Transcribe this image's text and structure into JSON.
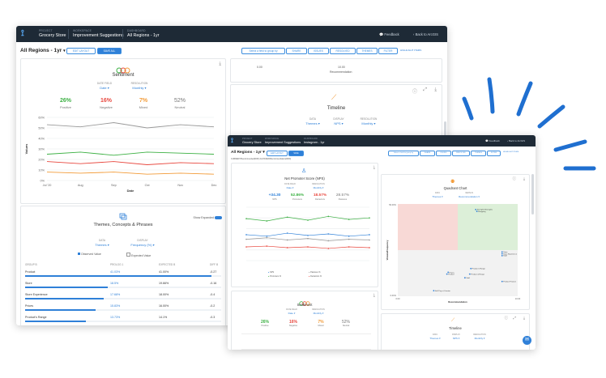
{
  "colors": {
    "navy": "#1e2a36",
    "blue": "#2f80d8",
    "green": "#3cb043",
    "red": "#e8483f",
    "orange": "#f29b38",
    "gray": "#999999",
    "swoosh": "#1f6fd0"
  },
  "back_window": {
    "breadcrumbs": [
      {
        "key": "PROJECT",
        "value": "Grocery Store"
      },
      {
        "key": "WORKSPACE",
        "value": "Improvement Suggestions"
      },
      {
        "key": "DASHBOARD",
        "value": "All Regions - 1yr"
      }
    ],
    "feedback_label": "Feedback",
    "back_label": "Back to ArcGIS",
    "region_title": "All Regions - 1yr",
    "toolbar": {
      "left_buttons": [
        "EDIT LAYOUT",
        "SAVE ALL"
      ],
      "right_buttons": [
        "Select a field to group by",
        "SHARE",
        "ISSUES",
        "RESOLVED",
        "THEMES",
        "FILTER",
        "HIGHLIGHT ITEMS"
      ]
    },
    "top_strip": {
      "values": [
        "0.00",
        "10.00",
        "Recommendation"
      ]
    },
    "sentiment": {
      "title": "Sentiment",
      "date_field_label": "DATE FIELD",
      "date_field_value": "Date",
      "resolution_label": "RESOLUTION",
      "resolution_value": "Monthly",
      "metrics": [
        {
          "value": "26%",
          "label": "Positive",
          "color": "#3cb043"
        },
        {
          "value": "16%",
          "label": "Negative",
          "color": "#e8483f"
        },
        {
          "value": "7%",
          "label": "Mixed",
          "color": "#f29b38"
        },
        {
          "value": "52%",
          "label": "Neutral",
          "color": "#777777"
        }
      ]
    },
    "chart_data": {
      "type": "line",
      "x": [
        "Jul '20",
        "Aug",
        "Sep",
        "Oct",
        "Nov",
        "Dec"
      ],
      "ylabel": "Values",
      "xlabel": "Date",
      "yticks": [
        "0%",
        "10%",
        "20%",
        "30%",
        "40%",
        "50%",
        "60%"
      ],
      "ylim": [
        0,
        60
      ],
      "series": [
        {
          "values": [
            53,
            51,
            55,
            50,
            53,
            51
          ],
          "color": "#999999"
        },
        {
          "values": [
            25,
            27,
            24,
            27,
            26,
            25
          ],
          "color": "#3cb043"
        },
        {
          "values": [
            18,
            16,
            18,
            15,
            17,
            16
          ],
          "color": "#e8483f"
        },
        {
          "values": [
            8,
            7,
            8,
            6,
            7,
            6
          ],
          "color": "#f29b38"
        }
      ]
    },
    "themes": {
      "title": "Themes, Concepts & Phrases",
      "show_expanded_label": "Show Expanded",
      "data_label": "DATA",
      "data_value": "Themes",
      "display_label": "DISPLAY",
      "display_value": "Frequency (%)",
      "legend": [
        "Observed Value",
        "Expected Value"
      ],
      "columns": [
        "GROUP B",
        "PROLOG 1",
        "EXPECTED B",
        "DIFF B"
      ],
      "rows": [
        {
          "name": "Product",
          "v1": "41.03%",
          "v2": "41.00%",
          "v3": "-0.27",
          "fill": 0.95
        },
        {
          "name": "Store",
          "v1": "18.5%",
          "v2": "19.66%",
          "v3": "-0.16",
          "fill": 0.42
        },
        {
          "name": "Store Experience",
          "v1": "17.68%",
          "v2": "18.00%",
          "v3": "-0.4",
          "fill": 0.4
        },
        {
          "name": "Prices",
          "v1": "15.83%",
          "v2": "16.00%",
          "v3": "-0.2",
          "fill": 0.36
        },
        {
          "name": "Product's Range",
          "v1": "13.73%",
          "v2": "14.1%",
          "v3": "-0.3",
          "fill": 0.31
        }
      ]
    },
    "timeline": {
      "title": "Timeline",
      "data_label": "DATA",
      "data_value": "Themes",
      "display_label": "DISPLAY",
      "display_value": "NPS",
      "resolution_label": "RESOLUTION",
      "resolution_value": "Monthly"
    }
  },
  "front_window": {
    "breadcrumbs": [
      {
        "key": "PROJECT",
        "value": "Grocery Store"
      },
      {
        "key": "WORKSPACE",
        "value": "Improvement Suggestions"
      },
      {
        "key": "DASHBOARD",
        "value": "Instagram - 1yr"
      }
    ],
    "feedback_label": "Feedback",
    "back_label": "Back to ArcGIS",
    "region_title": "All Regions - 1yr",
    "left_buttons": [
      "EDIT LAYOUT",
      "SAVE"
    ],
    "right_buttons": [
      "Select a field to group by",
      "SHARE",
      "ISSUES",
      "RESOLVED",
      "THEMES",
      "FILTER",
      "HIGHLIGHT ITEMS"
    ],
    "filter_text": "CURRENT/Recommended(DIFF) 11/15/2020/Recommendation(DIFF)",
    "nps": {
      "title": "Net Promoter Score (NPS)",
      "date_field_label": "DATE FIELD",
      "date_field_value": "Date",
      "resolution_label": "RESOLUTION",
      "resolution_value": "Monthly",
      "metrics": [
        {
          "value": "+34.30",
          "label": "NPS",
          "color": "#2f80d8"
        },
        {
          "value": "52.86%",
          "label": "Promoters",
          "color": "#3cb043"
        },
        {
          "value": "18.57%",
          "label": "Detractors",
          "color": "#e8483f"
        },
        {
          "value": "28.57%",
          "label": "Passives",
          "color": "#777777"
        }
      ],
      "legend": [
        "NPS",
        "Promoters %",
        "Passives %",
        "Detractors %"
      ]
    },
    "nps_chart": {
      "type": "line",
      "series": [
        {
          "values": [
            55,
            52,
            57,
            53,
            58,
            54,
            56
          ],
          "color": "#3cb043"
        },
        {
          "values": [
            34,
            32,
            36,
            33,
            35,
            32,
            34
          ],
          "color": "#2f80d8"
        },
        {
          "values": [
            28,
            30,
            27,
            29,
            26,
            28,
            27
          ],
          "color": "#999999"
        },
        {
          "values": [
            18,
            19,
            17,
            18,
            16,
            18,
            17
          ],
          "color": "#e8483f"
        }
      ],
      "ylim": [
        0,
        70
      ]
    },
    "quadrant": {
      "title": "Quadrant Chart",
      "data_label": "DATA",
      "data_value": "Themes",
      "vs_label": "VERSUS",
      "vs_value": "Recommendation",
      "ylabel": "Volume/Frequency",
      "xlabel": "Recommendation",
      "yticks": [
        "50.00%",
        "0.00%"
      ],
      "xticks": [
        "0.00",
        "10.00"
      ],
      "points": [
        {
          "x": 6.5,
          "y": 47,
          "label": "Strengths/Strengths"
        },
        {
          "x": 6.6,
          "y": 46,
          "label": "Shopping"
        },
        {
          "x": 8.7,
          "y": 24,
          "label": "Store"
        },
        {
          "x": 8.7,
          "y": 23,
          "label": "Store Experience"
        },
        {
          "x": 8.7,
          "y": 22,
          "label": "Staff"
        },
        {
          "x": 6.1,
          "y": 15,
          "label": "Product's Range"
        },
        {
          "x": 4.2,
          "y": 13,
          "label": "Prices"
        },
        {
          "x": 6.0,
          "y": 12,
          "label": "Product & Range"
        },
        {
          "x": 5.6,
          "y": 10,
          "label": "Staff"
        },
        {
          "x": 4.1,
          "y": 12,
          "label": "Product"
        },
        {
          "x": 8.7,
          "y": 8,
          "label": "Product Feature"
        },
        {
          "x": 3.0,
          "y": 3,
          "label": "Self Pay at Counter"
        }
      ]
    },
    "sentiment": {
      "title": "Sentiment",
      "date_field_label": "DATE FIELD",
      "date_field_value": "Date",
      "resolution_label": "RESOLUTION",
      "resolution_value": "Monthly",
      "metrics": [
        {
          "value": "26%",
          "label": "Positive",
          "color": "#3cb043"
        },
        {
          "value": "16%",
          "label": "Negative",
          "color": "#e8483f"
        },
        {
          "value": "7%",
          "label": "Mixed",
          "color": "#f29b38"
        },
        {
          "value": "52%",
          "label": "Neutral",
          "color": "#777777"
        }
      ]
    },
    "timeline": {
      "title": "Timeline",
      "data_label": "DATA",
      "data_value": "Themes",
      "display_label": "DISPLAY",
      "display_value": "NPS",
      "resolution_label": "RESOLUTION",
      "resolution_value": "Monthly"
    }
  }
}
